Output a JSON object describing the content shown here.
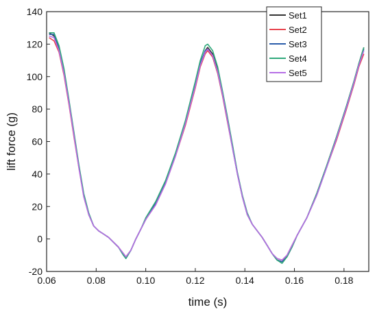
{
  "chart_data": {
    "type": "line",
    "title": "",
    "xlabel": "time (s)",
    "ylabel": "lift force (g)",
    "xlim": [
      0.06,
      0.19
    ],
    "ylim": [
      -20,
      140
    ],
    "x_ticks": [
      0.06,
      0.08,
      0.1,
      0.12,
      0.14,
      0.16,
      0.18
    ],
    "x_tick_labels": [
      "0.06",
      "0.08",
      "0.10",
      "0.12",
      "0.14",
      "0.16",
      "0.18"
    ],
    "y_ticks": [
      -20,
      0,
      20,
      40,
      60,
      80,
      100,
      120,
      140
    ],
    "y_tick_labels": [
      "-20",
      "0",
      "20",
      "40",
      "60",
      "80",
      "100",
      "120",
      "140"
    ],
    "grid": false,
    "legend_position": "top-right",
    "series": [
      {
        "name": "Set1",
        "color": "#333333",
        "x": [
          0.061,
          0.063,
          0.065,
          0.067,
          0.069,
          0.071,
          0.073,
          0.075,
          0.077,
          0.079,
          0.081,
          0.083,
          0.085,
          0.087,
          0.089,
          0.091,
          0.092,
          0.094,
          0.096,
          0.098,
          0.1,
          0.104,
          0.108,
          0.112,
          0.116,
          0.12,
          0.122,
          0.124,
          0.125,
          0.127,
          0.129,
          0.131,
          0.133,
          0.135,
          0.137,
          0.139,
          0.141,
          0.143,
          0.145,
          0.147,
          0.149,
          0.151,
          0.153,
          0.155,
          0.157,
          0.159,
          0.161,
          0.165,
          0.169,
          0.173,
          0.177,
          0.181,
          0.184,
          0.186,
          0.188
        ],
        "y": [
          127,
          125,
          117,
          103,
          85,
          65,
          45,
          27,
          15,
          8,
          5,
          3,
          1,
          -2,
          -5,
          -10,
          -11,
          -7,
          0,
          6,
          12,
          22,
          35,
          52,
          72,
          95,
          108,
          116,
          118,
          114,
          104,
          90,
          74,
          57,
          40,
          26,
          15,
          9,
          5,
          1,
          -4,
          -9,
          -13,
          -14,
          -11,
          -5,
          2,
          13,
          28,
          45,
          63,
          82,
          97,
          108,
          118
        ]
      },
      {
        "name": "Set2",
        "color": "#e8454f",
        "x": [
          0.061,
          0.063,
          0.065,
          0.067,
          0.069,
          0.071,
          0.073,
          0.075,
          0.077,
          0.079,
          0.081,
          0.083,
          0.085,
          0.087,
          0.089,
          0.091,
          0.092,
          0.094,
          0.096,
          0.098,
          0.1,
          0.104,
          0.108,
          0.112,
          0.116,
          0.12,
          0.122,
          0.124,
          0.125,
          0.127,
          0.129,
          0.131,
          0.133,
          0.135,
          0.137,
          0.139,
          0.141,
          0.143,
          0.145,
          0.147,
          0.149,
          0.151,
          0.153,
          0.155,
          0.157,
          0.159,
          0.161,
          0.165,
          0.169,
          0.173,
          0.177,
          0.181,
          0.184,
          0.186,
          0.188
        ],
        "y": [
          124,
          122,
          115,
          101,
          83,
          63,
          44,
          26,
          15,
          8,
          5,
          3,
          1,
          -2,
          -5,
          -9,
          -11,
          -7,
          0,
          6,
          12,
          21,
          34,
          51,
          70,
          93,
          106,
          114,
          116,
          112,
          102,
          88,
          72,
          56,
          40,
          26,
          15,
          9,
          5,
          1,
          -4,
          -9,
          -12,
          -13,
          -10,
          -4,
          2,
          13,
          27,
          44,
          61,
          80,
          95,
          106,
          114
        ]
      },
      {
        "name": "Set3",
        "color": "#2a5caa",
        "x": [
          0.061,
          0.063,
          0.065,
          0.067,
          0.069,
          0.071,
          0.073,
          0.075,
          0.077,
          0.079,
          0.081,
          0.083,
          0.085,
          0.087,
          0.089,
          0.091,
          0.092,
          0.094,
          0.096,
          0.098,
          0.1,
          0.104,
          0.108,
          0.112,
          0.116,
          0.12,
          0.122,
          0.124,
          0.125,
          0.127,
          0.129,
          0.131,
          0.133,
          0.135,
          0.137,
          0.139,
          0.141,
          0.143,
          0.145,
          0.147,
          0.149,
          0.151,
          0.153,
          0.155,
          0.157,
          0.159,
          0.161,
          0.165,
          0.169,
          0.173,
          0.177,
          0.181,
          0.184,
          0.186,
          0.188
        ],
        "y": [
          126,
          126,
          118,
          104,
          85,
          65,
          45,
          27,
          15,
          8,
          5,
          3,
          1,
          -2,
          -5,
          -10,
          -12,
          -7,
          0,
          6,
          12,
          22,
          35,
          52,
          72,
          95,
          108,
          116,
          117,
          113,
          103,
          89,
          73,
          56,
          40,
          26,
          15,
          9,
          5,
          1,
          -4,
          -9,
          -13,
          -14,
          -11,
          -5,
          2,
          13,
          27,
          44,
          62,
          81,
          96,
          107,
          117
        ]
      },
      {
        "name": "Set4",
        "color": "#2ea87a",
        "x": [
          0.061,
          0.063,
          0.065,
          0.067,
          0.069,
          0.071,
          0.073,
          0.075,
          0.077,
          0.079,
          0.081,
          0.083,
          0.085,
          0.087,
          0.089,
          0.091,
          0.092,
          0.094,
          0.096,
          0.098,
          0.1,
          0.104,
          0.108,
          0.112,
          0.116,
          0.12,
          0.122,
          0.124,
          0.125,
          0.127,
          0.129,
          0.131,
          0.133,
          0.135,
          0.137,
          0.139,
          0.141,
          0.143,
          0.145,
          0.147,
          0.149,
          0.151,
          0.153,
          0.155,
          0.157,
          0.159,
          0.161,
          0.165,
          0.169,
          0.173,
          0.177,
          0.181,
          0.184,
          0.186,
          0.188
        ],
        "y": [
          127,
          127,
          119,
          105,
          86,
          66,
          46,
          28,
          16,
          8,
          5,
          3,
          1,
          -2,
          -5,
          -10,
          -12,
          -7,
          0,
          6,
          13,
          23,
          36,
          53,
          73,
          97,
          110,
          119,
          120,
          116,
          106,
          91,
          75,
          58,
          41,
          27,
          16,
          9,
          5,
          1,
          -4,
          -9,
          -13,
          -15,
          -11,
          -5,
          2,
          13,
          28,
          45,
          63,
          82,
          97,
          108,
          118
        ]
      },
      {
        "name": "Set5",
        "color": "#b56ee6",
        "x": [
          0.061,
          0.063,
          0.065,
          0.067,
          0.069,
          0.071,
          0.073,
          0.075,
          0.077,
          0.079,
          0.081,
          0.083,
          0.085,
          0.087,
          0.089,
          0.091,
          0.092,
          0.094,
          0.096,
          0.098,
          0.1,
          0.104,
          0.108,
          0.112,
          0.116,
          0.12,
          0.122,
          0.124,
          0.125,
          0.127,
          0.129,
          0.131,
          0.133,
          0.135,
          0.137,
          0.139,
          0.141,
          0.143,
          0.145,
          0.147,
          0.149,
          0.151,
          0.153,
          0.155,
          0.157,
          0.159,
          0.161,
          0.165,
          0.169,
          0.173,
          0.177,
          0.181,
          0.184,
          0.186,
          0.188
        ],
        "y": [
          125,
          124,
          116,
          102,
          84,
          64,
          44,
          26,
          15,
          8,
          5,
          3,
          1,
          -2,
          -5,
          -9,
          -11,
          -7,
          0,
          6,
          12,
          21,
          34,
          51,
          71,
          94,
          107,
          115,
          117,
          113,
          103,
          89,
          73,
          56,
          40,
          26,
          15,
          9,
          5,
          1,
          -4,
          -9,
          -12,
          -13,
          -10,
          -4,
          2,
          13,
          27,
          44,
          62,
          81,
          96,
          107,
          116
        ]
      }
    ]
  }
}
